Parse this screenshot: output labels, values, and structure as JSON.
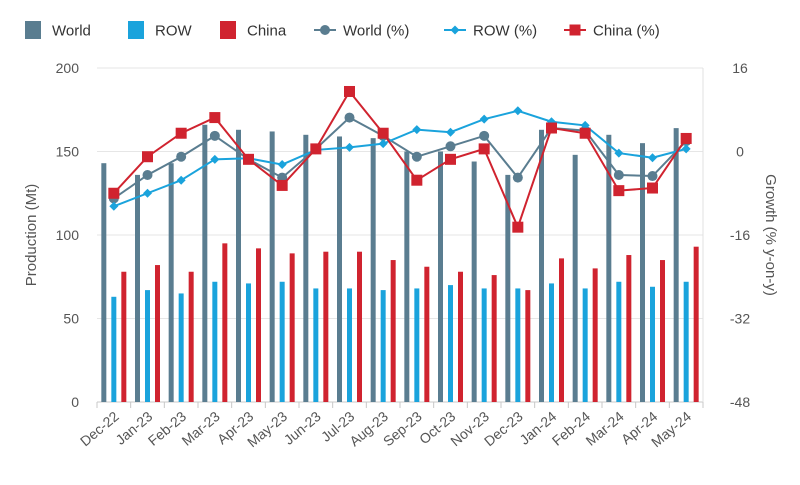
{
  "chart_data": {
    "type": "bar",
    "title": "",
    "categories": [
      "Dec-22",
      "Jan-23",
      "Feb-23",
      "Mar-23",
      "Apr-23",
      "May-23",
      "Jun-23",
      "Jul-23",
      "Aug-23",
      "Sep-23",
      "Oct-23",
      "Nov-23",
      "Dec-23",
      "Jan-24",
      "Feb-24",
      "Mar-24",
      "Apr-24",
      "May-24"
    ],
    "ylabel": "Production (Mt)",
    "y2label": "Growth (% y-on-y)",
    "ylim": [
      0,
      200
    ],
    "yticks": [
      "0",
      "50",
      "100",
      "150",
      "200"
    ],
    "y2lim": [
      -48,
      16
    ],
    "y2ticks": [
      "-48",
      "-32",
      "-16",
      "0",
      "16"
    ],
    "grid": true,
    "legend_position": "top",
    "series": [
      {
        "name": "World",
        "kind": "bar",
        "axis": "left",
        "color": "#5a7d90",
        "values": [
          143,
          136,
          143,
          166,
          163,
          162,
          160,
          159,
          158,
          150,
          150,
          144,
          136,
          163,
          148,
          160,
          155,
          164
        ]
      },
      {
        "name": "ROW",
        "kind": "bar",
        "axis": "left",
        "color": "#1aa3dc",
        "values": [
          63,
          67,
          65,
          72,
          71,
          72,
          68,
          68,
          67,
          68,
          70,
          68,
          68,
          71,
          68,
          72,
          69,
          72
        ]
      },
      {
        "name": "China",
        "kind": "bar",
        "axis": "left",
        "color": "#d0232f",
        "values": [
          78,
          82,
          78,
          95,
          92,
          89,
          90,
          90,
          85,
          81,
          78,
          76,
          67,
          86,
          80,
          88,
          85,
          93
        ]
      },
      {
        "name": "World (%)",
        "kind": "line",
        "axis": "right",
        "color": "#5a7d90",
        "marker": "circle",
        "values": [
          -9,
          -4.5,
          -1,
          3,
          -1.5,
          -5,
          0.5,
          6.5,
          3,
          -1,
          1,
          3,
          -5,
          4.5,
          4,
          -4.5,
          -4.7,
          2
        ]
      },
      {
        "name": "ROW (%)",
        "kind": "line",
        "axis": "right",
        "color": "#1aa3dc",
        "marker": "diamond",
        "values": [
          -10.5,
          -8,
          -5.5,
          -1.5,
          -1.3,
          -2.5,
          0.3,
          0.8,
          1.5,
          4.2,
          3.7,
          6.2,
          7.8,
          5.7,
          5,
          -0.3,
          -1.2,
          0.5
        ]
      },
      {
        "name": "China (%)",
        "kind": "line",
        "axis": "right",
        "color": "#d0232f",
        "marker": "square",
        "values": [
          -8,
          -1,
          3.5,
          6.5,
          -1.5,
          -6.5,
          0.5,
          11.5,
          3.5,
          -5.5,
          -1.5,
          0.5,
          -14.5,
          4.5,
          3.5,
          -7.5,
          -7,
          2.5
        ]
      }
    ]
  }
}
